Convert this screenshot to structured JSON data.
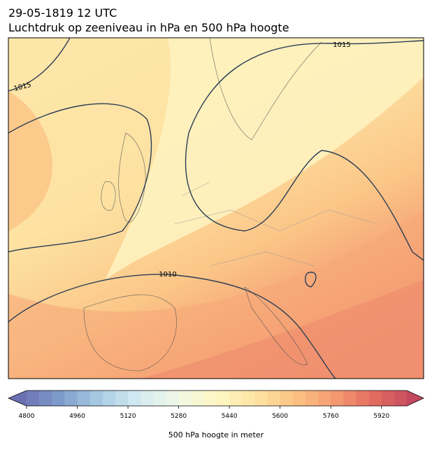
{
  "header": {
    "date": "29-05-1819 12 UTC",
    "title": "Luchtdruk op zeeniveau in hPa en 500 hPa hoogte"
  },
  "isobar_labels": [
    "1015",
    "1015",
    "1010"
  ],
  "colorbar": {
    "label": "500 hPa hoogte in meter",
    "range": [
      4800,
      6000
    ],
    "ticks": [
      4800,
      4960,
      5120,
      5280,
      5440,
      5600,
      5760,
      5920
    ],
    "segments": 30,
    "colors": [
      "#6b70b3",
      "#7e9ccb",
      "#a8cbe2",
      "#d3eaf2",
      "#f0f8e6",
      "#fef7c4",
      "#fde3a2",
      "#fbc383",
      "#f59b72",
      "#e36c5f",
      "#c4485f"
    ]
  }
}
